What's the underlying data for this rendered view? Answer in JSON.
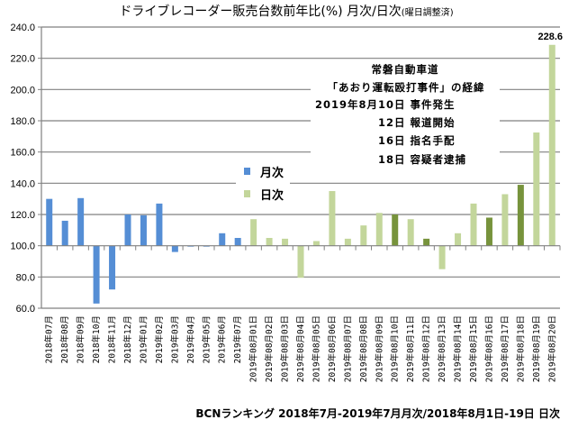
{
  "chart_data": {
    "type": "bar",
    "title": "ドライブレコーダー販売台数前年比(%) 月次/日次",
    "title_suffix": "(曜日調整済)",
    "ylim": [
      60,
      240
    ],
    "baseline": 100,
    "yticks": [
      240,
      220,
      200,
      180,
      160,
      140,
      120,
      100,
      80,
      60
    ],
    "ytick_labels": [
      "240.0",
      "220.0",
      "200.0",
      "180.0",
      "160.0",
      "140.0",
      "120.0",
      "100.0",
      "80.0",
      "60.0"
    ],
    "grid": true,
    "legend_position": "center-left",
    "categories": [
      "2018年07月",
      "2018年08月",
      "2018年09月",
      "2018年10月",
      "2018年11月",
      "2018年12月",
      "2019年01月",
      "2019年02月",
      "2019年03月",
      "2019年04月",
      "2019年05月",
      "2019年06月",
      "2019年07月",
      "2019年08月01日",
      "2019年08月02日",
      "2019年08月03日",
      "2019年08月04日",
      "2019年08月05日",
      "2019年08月06日",
      "2019年08月07日",
      "2019年08月08日",
      "2019年08月09日",
      "2019年08月10日",
      "2019年08月11日",
      "2019年08月12日",
      "2019年08月13日",
      "2019年08月14日",
      "2019年08月15日",
      "2019年08月16日",
      "2019年08月17日",
      "2019年08月18日",
      "2019年08月19日",
      "2019年08月20日"
    ],
    "series": [
      {
        "name": "月次",
        "color": "#558ED5",
        "values": [
          130,
          116,
          130.5,
          63,
          72,
          120,
          119.5,
          127,
          96,
          99.5,
          99.5,
          108,
          105,
          null,
          null,
          null,
          null,
          null,
          null,
          null,
          null,
          null,
          null,
          null,
          null,
          null,
          null,
          null,
          null,
          null,
          null,
          null,
          null
        ]
      },
      {
        "name": "日次",
        "color": "#C3D69B",
        "highlight_color": "#77933C",
        "highlight_dates": [
          "2019年08月10日",
          "2019年08月12日",
          "2019年08月16日",
          "2019年08月18日"
        ],
        "values": [
          null,
          null,
          null,
          null,
          null,
          null,
          null,
          null,
          null,
          null,
          null,
          null,
          null,
          117,
          105,
          104.5,
          79.5,
          103,
          135,
          104.5,
          113,
          121,
          120,
          117,
          104.5,
          85,
          108,
          127,
          118,
          133,
          139,
          172.5,
          228.6
        ]
      }
    ],
    "data_labels": [
      {
        "category": "2019年08月20日",
        "text": "228.6"
      }
    ],
    "annotation": {
      "lines": [
        "常磐自動車道",
        "「あおり運転殴打事件」の経緯",
        "2019年8月10日 事件発生",
        "12日 報道開始",
        "16日 指名手配",
        "18日 容疑者逮捕"
      ]
    },
    "source": "BCNランキング 2018年7月-2019年7月月次/2018年8月1日-19日 日次"
  }
}
